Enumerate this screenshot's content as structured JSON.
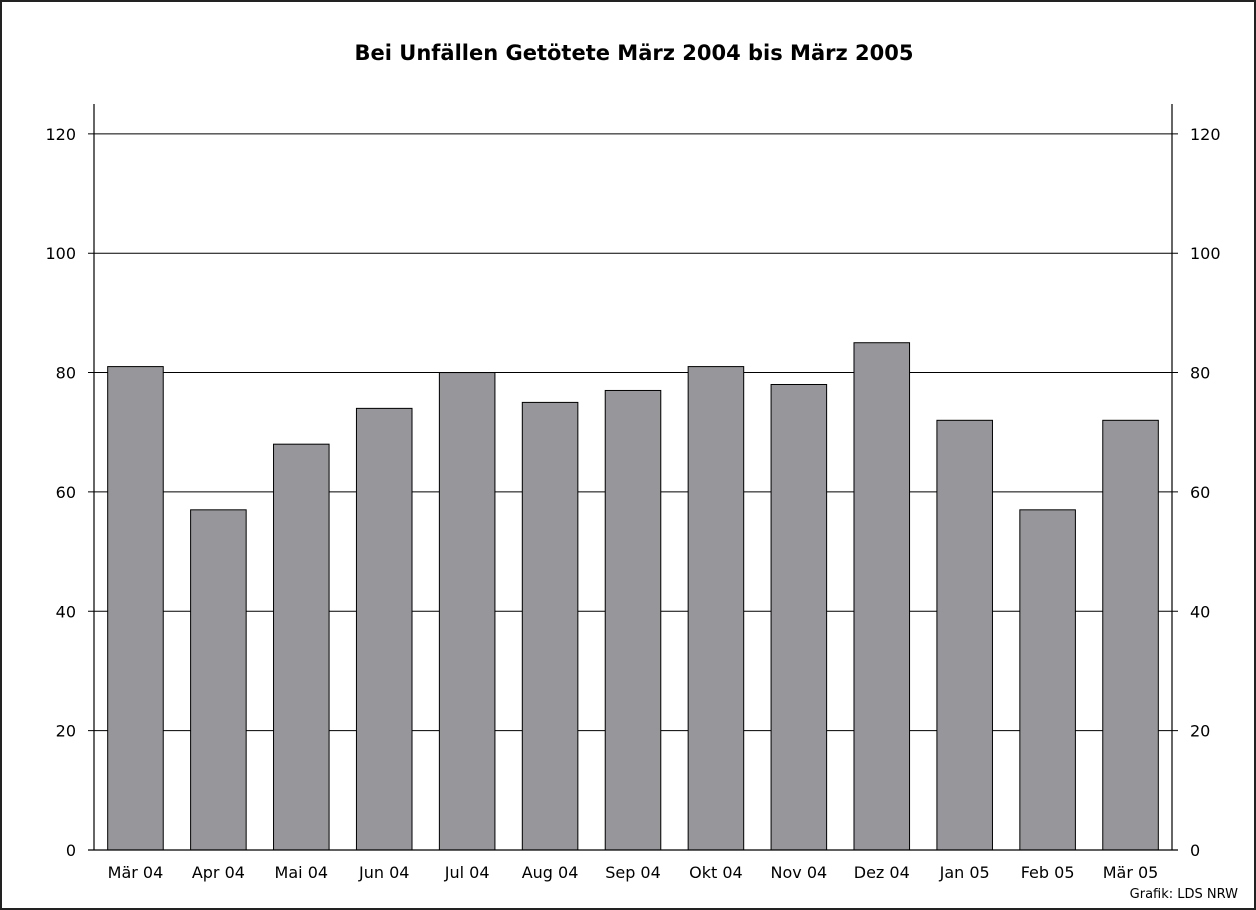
{
  "chart_data": {
    "type": "bar",
    "title": "Bei Unfällen Getötete März 2004 bis März 2005",
    "categories": [
      "Mär 04",
      "Apr 04",
      "Mai 04",
      "Jun 04",
      "Jul 04",
      "Aug 04",
      "Sep 04",
      "Okt 04",
      "Nov 04",
      "Dez 04",
      "Jan 05",
      "Feb 05",
      "Mär 05"
    ],
    "values": [
      81,
      57,
      68,
      74,
      80,
      75,
      77,
      81,
      78,
      85,
      72,
      57,
      72
    ],
    "xlabel": "",
    "ylabel": "",
    "ylim": [
      0,
      125
    ],
    "yticks": [
      0,
      20,
      40,
      60,
      80,
      100,
      120
    ],
    "grid": true,
    "bar_color": "#97979b",
    "legend": "none"
  },
  "credit": "Grafik: LDS NRW"
}
